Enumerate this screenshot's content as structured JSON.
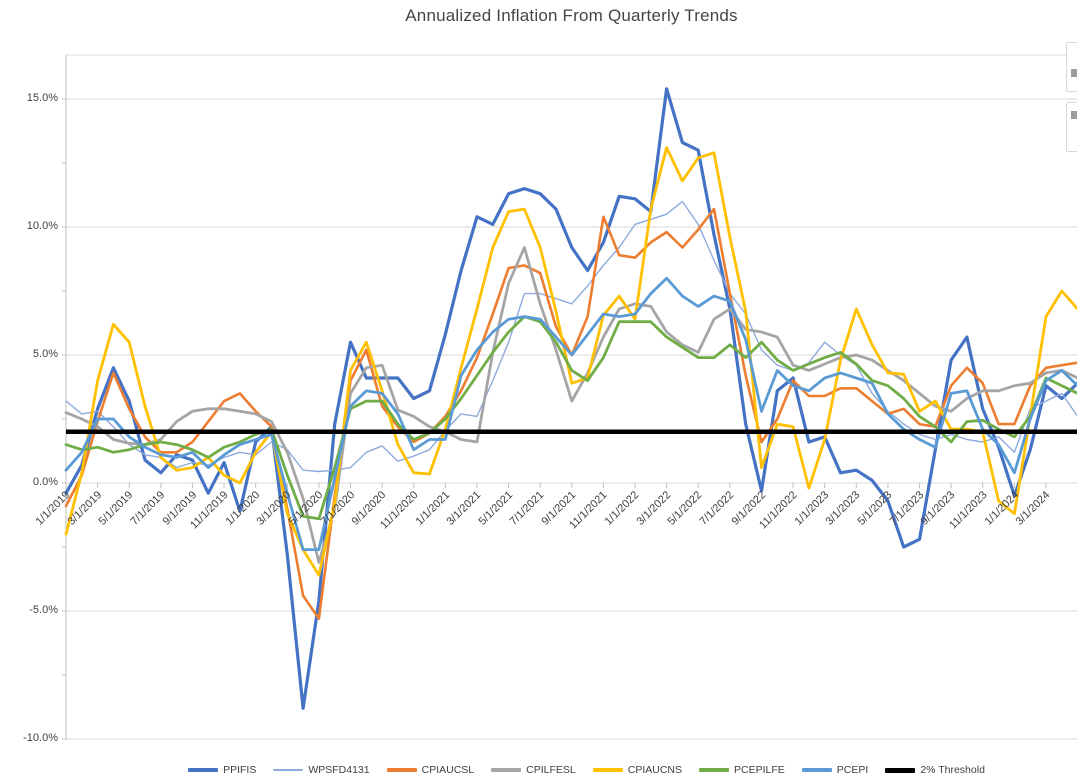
{
  "title": "Annualized Inflation From Quarterly Trends",
  "chart_data": {
    "type": "line",
    "title": "Annualized Inflation From Quarterly Trends",
    "grid": true,
    "legend_position": "bottom",
    "ylim": [
      -10,
      16.7
    ],
    "y_axis": {
      "tick_labels": [
        "15.0%",
        "10.0%",
        "5.0%",
        "0.0%",
        "-5.0%",
        "-10.0%"
      ],
      "tick_values": [
        15,
        10,
        5,
        0,
        -5,
        -10
      ],
      "minor_tick_step": 2.5
    },
    "x_axis": {
      "tick_labels": [
        "1/1/2019",
        "3/1/2019",
        "5/1/2019",
        "7/1/2019",
        "9/1/2019",
        "11/1/2019",
        "1/1/2020",
        "3/1/2020",
        "5/1/2020",
        "7/1/2020",
        "9/1/2020",
        "11/1/2020",
        "1/1/2021",
        "3/1/2021",
        "5/1/2021",
        "7/1/2021",
        "9/1/2021",
        "11/1/2021",
        "1/1/2022",
        "3/1/2022",
        "5/1/2022",
        "7/1/2022",
        "9/1/2022",
        "11/1/2022",
        "1/1/2023",
        "3/1/2023",
        "5/1/2023",
        "7/1/2023",
        "9/1/2023",
        "11/1/2023",
        "1/1/2024",
        "3/1/2024"
      ],
      "months_between_ticks": 2
    },
    "x": [
      "1/1/2019",
      "2/1/2019",
      "3/1/2019",
      "4/1/2019",
      "5/1/2019",
      "6/1/2019",
      "7/1/2019",
      "8/1/2019",
      "9/1/2019",
      "10/1/2019",
      "11/1/2019",
      "12/1/2019",
      "1/1/2020",
      "2/1/2020",
      "3/1/2020",
      "4/1/2020",
      "5/1/2020",
      "6/1/2020",
      "7/1/2020",
      "8/1/2020",
      "9/1/2020",
      "10/1/2020",
      "11/1/2020",
      "12/1/2020",
      "1/1/2021",
      "2/1/2021",
      "3/1/2021",
      "4/1/2021",
      "5/1/2021",
      "6/1/2021",
      "7/1/2021",
      "8/1/2021",
      "9/1/2021",
      "10/1/2021",
      "11/1/2021",
      "12/1/2021",
      "1/1/2022",
      "2/1/2022",
      "3/1/2022",
      "4/1/2022",
      "5/1/2022",
      "6/1/2022",
      "7/1/2022",
      "8/1/2022",
      "9/1/2022",
      "10/1/2022",
      "11/1/2022",
      "12/1/2022",
      "1/1/2023",
      "2/1/2023",
      "3/1/2023",
      "4/1/2023",
      "5/1/2023",
      "6/1/2023",
      "7/1/2023",
      "8/1/2023",
      "9/1/2023",
      "10/1/2023",
      "11/1/2023",
      "12/1/2023",
      "1/1/2024",
      "2/1/2024",
      "3/1/2024",
      "4/1/2024",
      "5/1/2024"
    ],
    "units": "percent, annualized",
    "series": [
      {
        "name": "PPIFIS",
        "color": "#4472C4",
        "width": 3.2,
        "legend_weight": 4,
        "values": [
          -0.4,
          0.7,
          2.9,
          4.5,
          3.2,
          0.9,
          0.4,
          1.1,
          0.9,
          -0.4,
          0.8,
          -1.1,
          1.6,
          2.2,
          -2.8,
          -8.8,
          -4.6,
          2.3,
          5.5,
          4.1,
          4.1,
          4.1,
          3.3,
          3.6,
          5.8,
          8.3,
          10.4,
          10.1,
          11.3,
          11.5,
          11.3,
          10.7,
          9.2,
          8.3,
          9.4,
          11.2,
          11.1,
          10.6,
          15.4,
          13.3,
          13.0,
          9.7,
          6.8,
          2.3,
          -0.3,
          3.6,
          4.1,
          1.6,
          1.8,
          0.4,
          0.5,
          0.1,
          -0.7,
          -2.5,
          -2.2,
          1.3,
          4.8,
          5.7,
          2.9,
          1.4,
          -0.5,
          1.3,
          3.8,
          3.3,
          3.9
        ]
      },
      {
        "name": "WPSFD4131",
        "color": "#8FAADC",
        "width": 1.4,
        "legend_weight": 2,
        "values": [
          3.2,
          2.7,
          2.8,
          2.2,
          1.5,
          1.1,
          1.0,
          0.6,
          0.8,
          0.7,
          1.0,
          1.2,
          1.1,
          1.6,
          1.3,
          0.5,
          0.45,
          0.5,
          0.6,
          1.2,
          1.45,
          0.85,
          1.05,
          1.3,
          2.05,
          2.7,
          2.6,
          4.0,
          5.5,
          7.4,
          7.4,
          7.2,
          7.0,
          7.7,
          8.5,
          9.2,
          10.1,
          10.3,
          10.5,
          11.0,
          10.1,
          8.7,
          7.4,
          6.6,
          5.2,
          4.6,
          4.4,
          4.7,
          5.5,
          5.0,
          4.6,
          3.5,
          2.8,
          2.3,
          1.9,
          1.7,
          1.9,
          1.7,
          1.6,
          1.8,
          1.2,
          2.9,
          3.2,
          3.5,
          2.6
        ]
      },
      {
        "name": "CPIAUCSL",
        "color": "#ED7D31",
        "width": 2.6,
        "legend_weight": 4,
        "values": [
          -0.9,
          0.3,
          2.4,
          4.3,
          2.9,
          1.8,
          1.2,
          1.2,
          1.6,
          2.4,
          3.2,
          3.5,
          2.8,
          2.2,
          -1.0,
          -4.4,
          -5.3,
          -0.5,
          4.0,
          5.2,
          3.0,
          2.2,
          1.6,
          1.95,
          2.6,
          3.6,
          4.9,
          6.6,
          8.4,
          8.5,
          8.2,
          6.1,
          5.0,
          6.5,
          10.4,
          8.9,
          8.8,
          9.4,
          9.8,
          9.2,
          9.9,
          10.7,
          7.4,
          4.2,
          1.6,
          2.5,
          4.0,
          3.4,
          3.4,
          3.7,
          3.7,
          3.2,
          2.7,
          2.9,
          2.3,
          2.2,
          3.8,
          4.5,
          3.9,
          2.3,
          2.3,
          3.8,
          4.5,
          4.6,
          4.7
        ]
      },
      {
        "name": "CPILFESL",
        "color": "#A5A5A5",
        "width": 2.8,
        "legend_weight": 4,
        "values": [
          2.75,
          2.5,
          2.2,
          1.7,
          1.55,
          1.5,
          1.7,
          2.4,
          2.8,
          2.9,
          2.9,
          2.8,
          2.7,
          2.4,
          1.2,
          -0.6,
          -3.1,
          -1.0,
          3.5,
          4.5,
          4.6,
          2.85,
          2.6,
          2.2,
          2.0,
          1.7,
          1.6,
          5.1,
          7.8,
          9.2,
          7.0,
          5.2,
          3.2,
          4.3,
          5.7,
          6.8,
          7.0,
          6.9,
          5.9,
          5.4,
          5.1,
          6.4,
          6.8,
          6.0,
          5.9,
          5.7,
          4.6,
          4.4,
          4.65,
          4.9,
          5.0,
          4.8,
          4.4,
          4.0,
          3.5,
          3.0,
          2.8,
          3.3,
          3.6,
          3.6,
          3.8,
          3.9,
          4.3,
          4.4,
          4.1
        ]
      },
      {
        "name": "CPIAUCNS",
        "color": "#FFC000",
        "width": 2.8,
        "legend_weight": 4,
        "values": [
          -2.0,
          0.4,
          4.0,
          6.2,
          5.5,
          3.0,
          1.0,
          0.5,
          0.6,
          1.0,
          0.3,
          0.0,
          1.2,
          2.0,
          -1.2,
          -2.6,
          -3.6,
          -0.8,
          4.4,
          5.5,
          3.6,
          1.5,
          0.4,
          0.35,
          2.1,
          4.5,
          6.8,
          9.2,
          10.6,
          10.7,
          9.2,
          6.7,
          3.9,
          4.1,
          6.55,
          7.3,
          6.4,
          10.7,
          13.1,
          11.8,
          12.7,
          12.9,
          9.6,
          6.7,
          0.6,
          2.3,
          2.2,
          -0.2,
          1.7,
          4.8,
          6.8,
          5.4,
          4.3,
          4.25,
          2.8,
          3.2,
          2.1,
          2.1,
          2.0,
          -0.7,
          -1.2,
          2.6,
          6.5,
          7.5,
          6.8
        ]
      },
      {
        "name": "PCEPILFE",
        "color": "#70AD47",
        "width": 2.8,
        "legend_weight": 4,
        "values": [
          1.5,
          1.3,
          1.4,
          1.2,
          1.3,
          1.5,
          1.6,
          1.5,
          1.3,
          1.0,
          1.4,
          1.6,
          1.9,
          2.1,
          0.3,
          -1.3,
          -1.4,
          0.6,
          2.9,
          3.2,
          3.2,
          2.3,
          1.7,
          1.95,
          2.5,
          3.3,
          4.2,
          5.1,
          5.9,
          6.5,
          6.3,
          5.5,
          4.4,
          4.0,
          4.9,
          6.3,
          6.3,
          6.3,
          5.7,
          5.3,
          4.9,
          4.9,
          5.4,
          4.9,
          5.5,
          4.8,
          4.4,
          4.65,
          4.9,
          5.1,
          4.65,
          4.0,
          3.8,
          3.3,
          2.6,
          2.2,
          1.6,
          2.4,
          2.45,
          2.1,
          1.8,
          2.6,
          4.1,
          3.8,
          3.5
        ]
      },
      {
        "name": "PCEPI",
        "color": "#5B9BD5",
        "width": 2.8,
        "legend_weight": 4,
        "values": [
          0.5,
          1.2,
          2.5,
          2.5,
          1.8,
          1.4,
          1.1,
          1.0,
          1.2,
          0.6,
          1.1,
          1.5,
          1.7,
          1.9,
          -0.4,
          -2.6,
          -2.6,
          0.2,
          3.0,
          3.6,
          3.5,
          2.7,
          1.3,
          1.7,
          1.7,
          4.2,
          5.2,
          5.9,
          6.4,
          6.5,
          6.4,
          5.7,
          5.0,
          5.8,
          6.6,
          6.5,
          6.6,
          7.4,
          8.0,
          7.3,
          6.9,
          7.3,
          7.1,
          5.6,
          2.8,
          4.4,
          3.8,
          3.6,
          4.1,
          4.3,
          4.1,
          3.9,
          2.7,
          2.1,
          1.7,
          1.4,
          3.5,
          3.6,
          2.1,
          1.5,
          0.4,
          2.5,
          4.0,
          4.4,
          3.8
        ]
      },
      {
        "name": "2% Threshold",
        "color": "#000000",
        "width": 4.5,
        "legend_weight": 5,
        "constant": 2.0
      }
    ]
  },
  "chart_ui": {
    "corner_buttons": [
      {
        "name": "chart-elements-button"
      },
      {
        "name": "chart-filters-button"
      }
    ]
  }
}
